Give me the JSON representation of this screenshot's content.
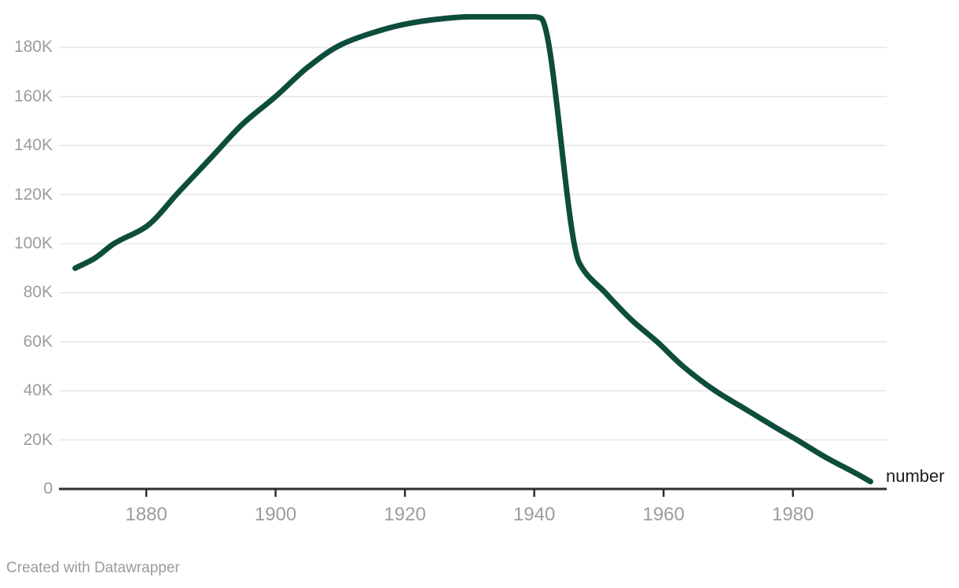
{
  "chart": {
    "series_label": "number",
    "colors": {
      "line": "#0d4d3c",
      "grid": "#e7e7e7",
      "axis": "#2d2d2d",
      "tick_label": "#9c9c9c",
      "series_label": "#1c1c1c",
      "credit": "#9b9b9b"
    }
  },
  "chart_data": {
    "type": "line",
    "title": "",
    "xlabel": "",
    "ylabel": "",
    "grid": "horizontal",
    "legend": "inline-end-of-line-label",
    "x_range": [
      1866.5,
      1994.5
    ],
    "y_range": [
      0,
      196800
    ],
    "x_ticks": [
      {
        "value": 1880,
        "label": "1880"
      },
      {
        "value": 1900,
        "label": "1900"
      },
      {
        "value": 1920,
        "label": "1920"
      },
      {
        "value": 1940,
        "label": "1940"
      },
      {
        "value": 1960,
        "label": "1960"
      },
      {
        "value": 1980,
        "label": "1980"
      }
    ],
    "y_ticks": [
      {
        "value": 0,
        "label": "0"
      },
      {
        "value": 20000,
        "label": "20K"
      },
      {
        "value": 40000,
        "label": "40K"
      },
      {
        "value": 60000,
        "label": "60K"
      },
      {
        "value": 80000,
        "label": "80K"
      },
      {
        "value": 100000,
        "label": "100K"
      },
      {
        "value": 120000,
        "label": "120K"
      },
      {
        "value": 140000,
        "label": "140K"
      },
      {
        "value": 160000,
        "label": "160K"
      },
      {
        "value": 180000,
        "label": "180K"
      }
    ],
    "series": [
      {
        "name": "number",
        "points": [
          [
            1869,
            90000
          ],
          [
            1872,
            94000
          ],
          [
            1875,
            100000
          ],
          [
            1880,
            107000
          ],
          [
            1885,
            121000
          ],
          [
            1890,
            135000
          ],
          [
            1895,
            149000
          ],
          [
            1900,
            160000
          ],
          [
            1905,
            172000
          ],
          [
            1910,
            181000
          ],
          [
            1915,
            186000
          ],
          [
            1920,
            189500
          ],
          [
            1925,
            191500
          ],
          [
            1930,
            192500
          ],
          [
            1935,
            192500
          ],
          [
            1940,
            192500
          ],
          [
            1941,
            192000
          ],
          [
            1947,
            92000
          ],
          [
            1951,
            80000
          ],
          [
            1955,
            69000
          ],
          [
            1959,
            60000
          ],
          [
            1963,
            50000
          ],
          [
            1968,
            40000
          ],
          [
            1973,
            32000
          ],
          [
            1978,
            24000
          ],
          [
            1980,
            21000
          ],
          [
            1985,
            13000
          ],
          [
            1990,
            6000
          ],
          [
            1992,
            3000
          ]
        ]
      }
    ]
  },
  "footer": {
    "credit": "Created with Datawrapper"
  }
}
